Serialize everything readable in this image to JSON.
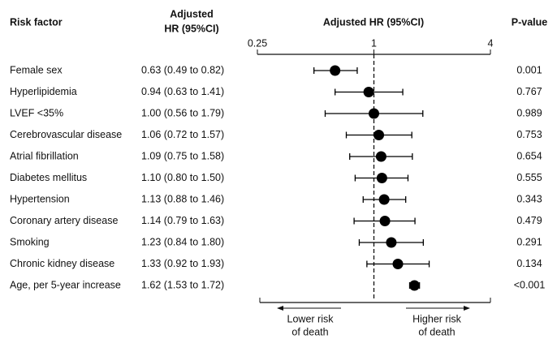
{
  "chart_data": {
    "type": "forest",
    "headers": {
      "risk_factor": "Risk factor",
      "hr_column": [
        "Adjusted",
        "HR (95%CI)"
      ],
      "axis_title": "Adjusted HR (95%CI)",
      "p_value": "P-value"
    },
    "categories": [
      "Female sex",
      "Hyperlipidemia",
      "LVEF <35%",
      "Cerebrovascular disease",
      "Atrial fibrillation",
      "Diabetes mellitus",
      "Hypertension",
      "Coronary artery disease",
      "Smoking",
      "Chronic kidney disease",
      "Age, per 5-year increase"
    ],
    "values": [
      0.63,
      0.94,
      1.0,
      1.06,
      1.09,
      1.1,
      1.13,
      1.14,
      1.23,
      1.33,
      1.62
    ],
    "lower": [
      0.49,
      0.63,
      0.56,
      0.72,
      0.75,
      0.8,
      0.88,
      0.79,
      0.84,
      0.92,
      1.53
    ],
    "upper": [
      0.82,
      1.41,
      1.79,
      1.57,
      1.58,
      1.5,
      1.46,
      1.63,
      1.8,
      1.93,
      1.72
    ],
    "value_labels": [
      "0.63 (0.49 to 0.82)",
      "0.94 (0.63 to 1.41)",
      "1.00 (0.56 to 1.79)",
      "1.06 (0.72 to 1.57)",
      "1.09 (0.75 to 1.58)",
      "1.10 (0.80 to 1.50)",
      "1.13 (0.88 to 1.46)",
      "1.14 (0.79 to 1.63)",
      "1.23 (0.84 to 1.80)",
      "1.33 (0.92 to 1.93)",
      "1.62 (1.53 to 1.72)"
    ],
    "p_values": [
      "0.001",
      "0.767",
      "0.989",
      "0.753",
      "0.654",
      "0.555",
      "0.343",
      "0.479",
      "0.291",
      "0.134",
      "<0.001"
    ],
    "xlim": [
      0.25,
      4
    ],
    "xticks": [
      0.25,
      1,
      4
    ],
    "log_scale": true,
    "reference": 1,
    "color": "#000000",
    "direction_labels": {
      "lower": [
        "Lower risk",
        "of death"
      ],
      "higher": [
        "Higher risk",
        "of death"
      ]
    }
  }
}
